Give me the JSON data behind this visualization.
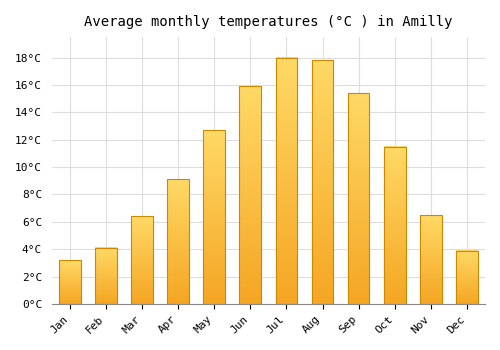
{
  "title": "Average monthly temperatures (°C ) in Amilly",
  "months": [
    "Jan",
    "Feb",
    "Mar",
    "Apr",
    "May",
    "Jun",
    "Jul",
    "Aug",
    "Sep",
    "Oct",
    "Nov",
    "Dec"
  ],
  "values": [
    3.2,
    4.1,
    6.4,
    9.1,
    12.7,
    15.9,
    18.0,
    17.8,
    15.4,
    11.5,
    6.5,
    3.9
  ],
  "bar_color_bottom": "#F5A623",
  "bar_color_top": "#FFD966",
  "bar_edge_color": "#CC8800",
  "background_color": "#FFFFFF",
  "grid_color": "#DDDDDD",
  "ylim": [
    0,
    19.5
  ],
  "yticks": [
    0,
    2,
    4,
    6,
    8,
    10,
    12,
    14,
    16,
    18
  ],
  "title_fontsize": 10,
  "tick_fontsize": 8,
  "font_family": "monospace"
}
